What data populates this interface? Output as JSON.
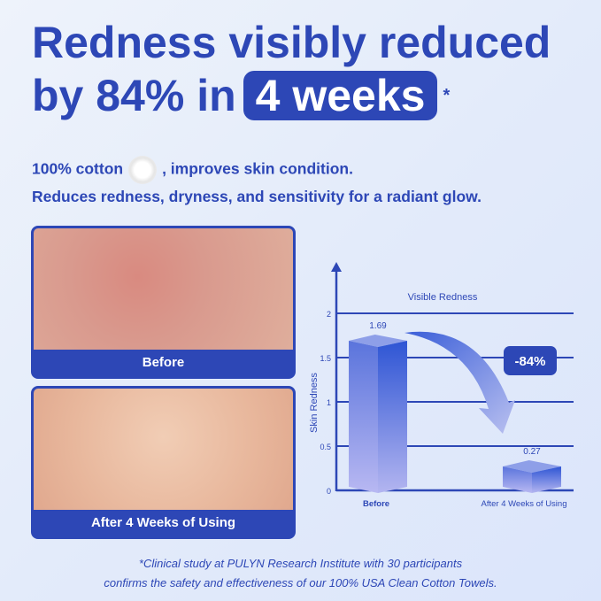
{
  "headline": {
    "line1": "Redness visibly reduced",
    "line2_prefix": "by 84% in",
    "line2_highlight": "4 weeks",
    "asterisk": "*"
  },
  "subtitle": {
    "line1_a": "100% cotton",
    "line1_b": ", improves skin condition.",
    "line2": "Reduces redness, dryness, and sensitivity for a radiant glow."
  },
  "photos": [
    {
      "caption": "Before"
    },
    {
      "caption": "After 4 Weeks of Using"
    }
  ],
  "footnote": {
    "line1": "*Clinical study at PULYN Research Institute with 30 participants",
    "line2": "confirms the safety and effectiveness of our 100% USA Clean Cotton Towels."
  },
  "colors": {
    "brand": "#2d47b6"
  },
  "chart_data": {
    "type": "bar",
    "title": "Visible Redness",
    "ylabel": "Skin Redness",
    "categories": [
      "Before",
      "After 4 Weeks of Using"
    ],
    "values": [
      1.69,
      0.27
    ],
    "value_labels": [
      "1.69",
      "0.27"
    ],
    "ylim": [
      0,
      2
    ],
    "yticks": [
      "0",
      "0.5",
      "1",
      "1.5",
      "2"
    ],
    "grid": true,
    "annotation": "-84%"
  }
}
